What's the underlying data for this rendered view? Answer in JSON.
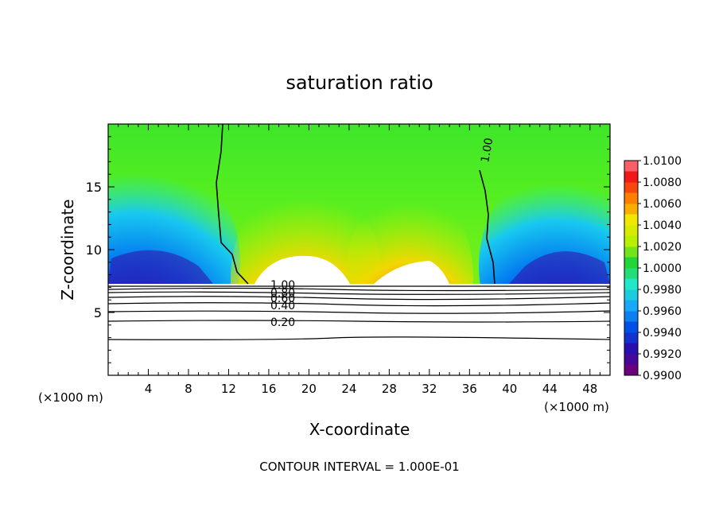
{
  "chart_data": {
    "type": "heatmap",
    "title": "saturation ratio",
    "xlabel": "X-coordinate",
    "ylabel": "Z-coordinate",
    "x_unit_label": "(×1000 m)",
    "xlim": [
      0,
      50
    ],
    "ylim": [
      0,
      20
    ],
    "x_ticks": [
      4,
      8,
      12,
      16,
      20,
      24,
      28,
      32,
      36,
      40,
      44,
      48
    ],
    "y_ticks": [
      5,
      10,
      15
    ],
    "colorbar": {
      "levels": [
        0.99,
        0.992,
        0.994,
        0.996,
        0.998,
        1.0,
        1.002,
        1.004,
        1.006,
        1.008,
        1.01
      ],
      "labels": [
        "0.9900",
        "0.9920",
        "0.9940",
        "0.9960",
        "0.9980",
        "1.0000",
        "1.0020",
        "1.0040",
        "1.0060",
        "1.0080",
        "1.0100"
      ],
      "colors": [
        "#6b007f",
        "#2a0fb0",
        "#0050e8",
        "#18a8f8",
        "#20e8c8",
        "#22d63a",
        "#b8f000",
        "#f0e800",
        "#ff8000",
        "#f01818",
        "#ff9aa8"
      ]
    },
    "contour_labels": [
      "1.00",
      "0.80",
      "0.60",
      "0.40",
      "0.20",
      "1.00"
    ],
    "contour_interval_text": "CONTOUR INTERVAL = 1.000E-01",
    "mountain_ridges_x": [
      6,
      24,
      45
    ],
    "dry_layer_top_z": 7.3
  }
}
